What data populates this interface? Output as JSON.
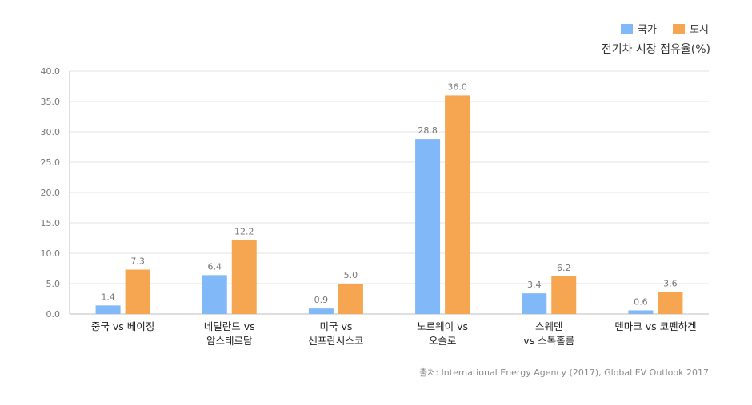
{
  "chart_data": {
    "type": "bar",
    "title": "전기차 시장 점유율(%)",
    "source": "출처: International Energy Agency (2017), Global EV Outlook 2017",
    "categories": [
      [
        "중국 vs 베이징"
      ],
      [
        "네덜란드 vs",
        "암스테르담"
      ],
      [
        "미국 vs",
        "샌프란시스코"
      ],
      [
        "노르웨이 vs",
        "오슬로"
      ],
      [
        "스웨덴",
        "vs 스톡홀름"
      ],
      [
        "덴마크 vs 코펜하겐"
      ]
    ],
    "series": [
      {
        "name": "국가",
        "color": "#80b8f8",
        "values": [
          1.4,
          6.4,
          0.9,
          28.8,
          3.4,
          0.6
        ],
        "labels": [
          "1.4",
          "6.4",
          "0.9",
          "28.8",
          "3.4",
          "0.6"
        ]
      },
      {
        "name": "도시",
        "color": "#f6a650",
        "values": [
          7.3,
          12.2,
          5.0,
          36.0,
          6.2,
          3.6
        ],
        "labels": [
          "7.3",
          "12.2",
          "5.0",
          "36.0",
          "6.2",
          "3.6"
        ]
      }
    ],
    "yticks": [
      "0.0",
      "5.0",
      "10.0",
      "15.0",
      "20.0",
      "25.0",
      "30.0",
      "35.0",
      "40.0"
    ],
    "ylim": [
      0,
      40
    ],
    "xlabel": "",
    "ylabel": "",
    "grid": true,
    "legend": "top-right"
  }
}
